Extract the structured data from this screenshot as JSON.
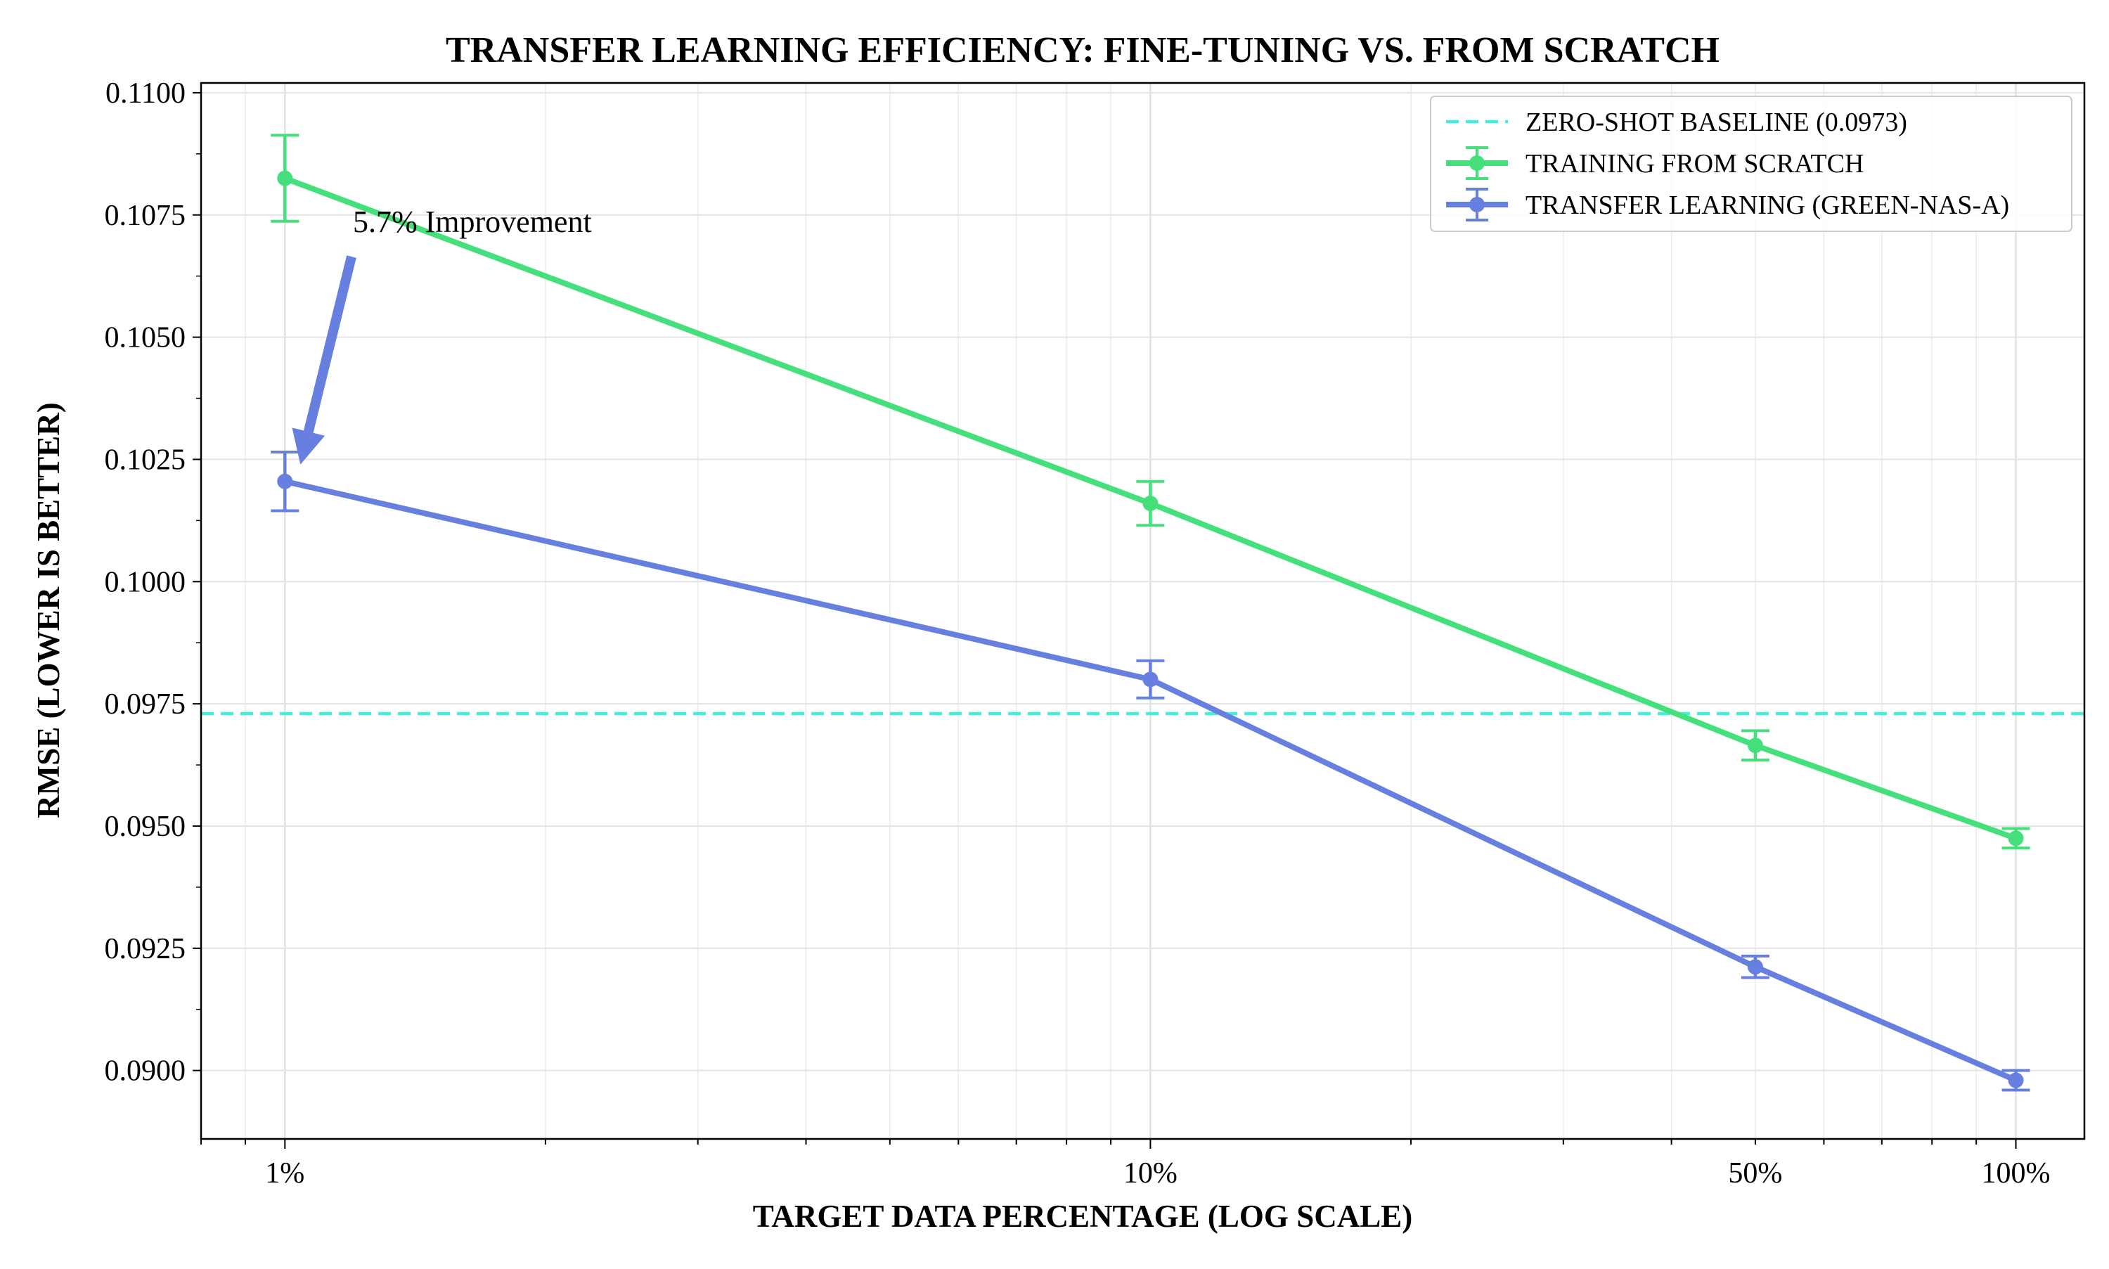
{
  "chart_data": {
    "type": "line",
    "title": "TRANSFER LEARNING EFFICIENCY: FINE-TUNING VS. FROM SCRATCH",
    "xlabel": "TARGET DATA PERCENTAGE (LOG SCALE)",
    "ylabel": "RMSE (LOWER IS BETTER)",
    "x_scale": "log",
    "x": [
      1,
      10,
      50,
      100
    ],
    "x_tick_labels": [
      "1%",
      "10%",
      "50%",
      "100%"
    ],
    "xlim": [
      0.8,
      120
    ],
    "ylim": [
      0.0886,
      0.1102
    ],
    "y_ticks": [
      "0.1100",
      "0.1075",
      "0.1050",
      "0.1025",
      "0.1000",
      "0.0975",
      "0.0950",
      "0.0925",
      "0.0900"
    ],
    "grid": true,
    "legend_position": "top-right",
    "baseline": {
      "name": "ZERO-SHOT BASELINE (0.0973)",
      "value": 0.0973,
      "color": "#40f0d8",
      "style": "dashed"
    },
    "series": [
      {
        "name": "TRAINING FROM SCRATCH",
        "color": "#45e07c",
        "values": [
          0.10825,
          0.1016,
          0.09665,
          0.09475
        ],
        "errors": [
          0.00088,
          0.00045,
          0.0003,
          0.0002
        ]
      },
      {
        "name": "TRANSFER LEARNING (GREEN-NAS-A)",
        "color": "#6780e0",
        "values": [
          0.10205,
          0.098,
          0.09212,
          0.0898
        ],
        "errors": [
          0.0006,
          0.00038,
          0.00022,
          0.0002
        ]
      }
    ],
    "annotations": [
      {
        "text": "5.7% Improvement",
        "arrow_color": "#6780e0"
      }
    ]
  }
}
